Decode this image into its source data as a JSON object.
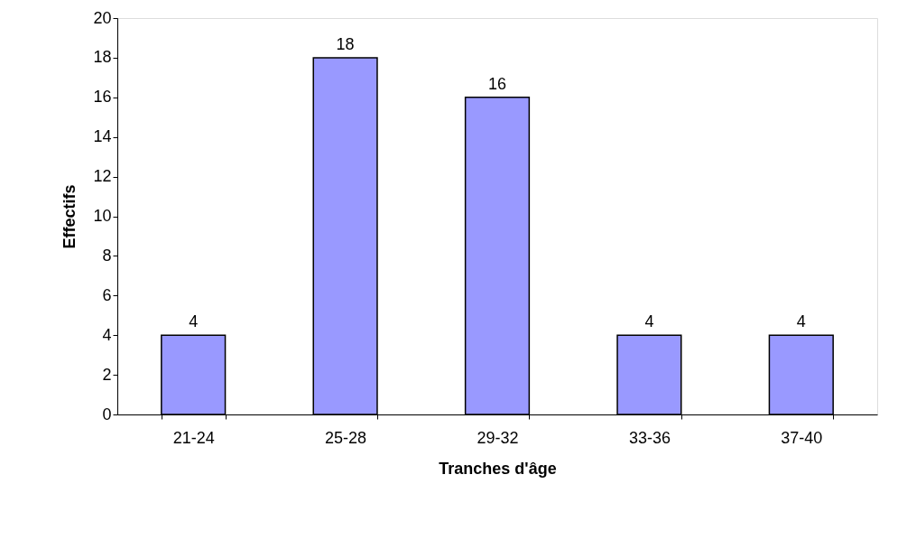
{
  "chart_data": {
    "type": "bar",
    "xlabel": "Tranches d'âge",
    "ylabel": "Effectifs",
    "categories": [
      "21-24",
      "25-28",
      "29-32",
      "33-36",
      "37-40"
    ],
    "values": [
      4,
      18,
      16,
      4,
      4
    ],
    "color": "#9999ff",
    "ylim": [
      0,
      20
    ],
    "yticks": [
      0,
      2,
      4,
      6,
      8,
      10,
      12,
      14,
      16,
      18,
      20
    ],
    "grid": false,
    "data_labels": true
  }
}
